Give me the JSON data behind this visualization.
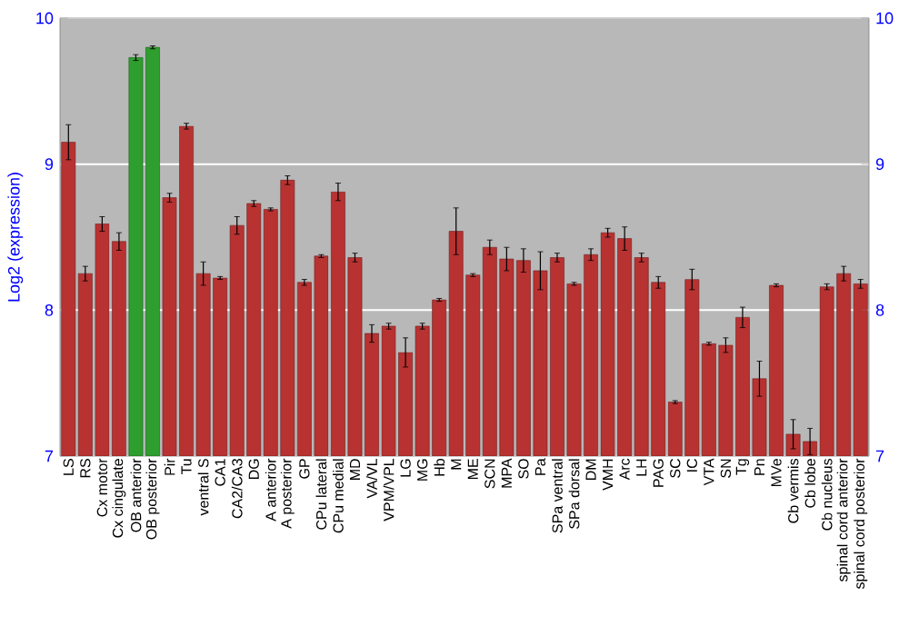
{
  "chart_data": {
    "type": "bar",
    "ylabel": "Log2 (expression)",
    "categories": [
      "LS",
      "RS",
      "Cx motor",
      "Cx cingulate",
      "OB anterior",
      "OB posterior",
      "Pir",
      "Tu",
      "ventral S",
      "CA1",
      "CA2/CA3",
      "DG",
      "A anterior",
      "A posterior",
      "GP",
      "CPu lateral",
      "CPu medial",
      "MD",
      "VA/VL",
      "VPM/VPL",
      "LG",
      "MG",
      "Hb",
      "M",
      "ME",
      "SCN",
      "MPA",
      "SO",
      "Pa",
      "SPa ventral",
      "SPa dorsal",
      "DM",
      "VMH",
      "Arc",
      "LH",
      "PAG",
      "SC",
      "IC",
      "VTA",
      "SN",
      "Tg",
      "Pn",
      "MVe",
      "Cb vermis",
      "Cb lobe",
      "Cb nucleus",
      "spinal cord anterior",
      "spinal cord posterior"
    ],
    "values": [
      9.15,
      8.25,
      8.59,
      8.47,
      9.73,
      9.8,
      8.77,
      9.26,
      8.25,
      8.22,
      8.58,
      8.73,
      8.69,
      8.89,
      8.19,
      8.37,
      8.81,
      8.36,
      7.84,
      7.89,
      7.71,
      7.89,
      8.07,
      8.54,
      8.24,
      8.43,
      8.35,
      8.34,
      8.27,
      8.36,
      8.18,
      8.38,
      8.53,
      8.49,
      8.36,
      8.19,
      7.37,
      8.21,
      7.77,
      7.76,
      7.95,
      7.53,
      8.17,
      7.15,
      7.1,
      8.16,
      8.25,
      8.18
    ],
    "errors": [
      0.12,
      0.05,
      0.05,
      0.06,
      0.02,
      0.01,
      0.03,
      0.02,
      0.08,
      0.01,
      0.06,
      0.02,
      0.01,
      0.03,
      0.02,
      0.01,
      0.06,
      0.03,
      0.06,
      0.02,
      0.1,
      0.02,
      0.01,
      0.16,
      0.01,
      0.05,
      0.08,
      0.08,
      0.13,
      0.03,
      0.01,
      0.04,
      0.03,
      0.08,
      0.03,
      0.04,
      0.01,
      0.07,
      0.01,
      0.05,
      0.07,
      0.12,
      0.01,
      0.1,
      0.09,
      0.02,
      0.05,
      0.03
    ],
    "colors": [
      "#b83232",
      "#b83232",
      "#b83232",
      "#b83232",
      "#2e9e2e",
      "#2e9e2e",
      "#b83232",
      "#b83232",
      "#b83232",
      "#b83232",
      "#b83232",
      "#b83232",
      "#b83232",
      "#b83232",
      "#b83232",
      "#b83232",
      "#b83232",
      "#b83232",
      "#b83232",
      "#b83232",
      "#b83232",
      "#b83232",
      "#b83232",
      "#b83232",
      "#b83232",
      "#b83232",
      "#b83232",
      "#b83232",
      "#b83232",
      "#b83232",
      "#b83232",
      "#b83232",
      "#b83232",
      "#b83232",
      "#b83232",
      "#b83232",
      "#b83232",
      "#b83232",
      "#b83232",
      "#b83232",
      "#b83232",
      "#b83232",
      "#b83232",
      "#b83232",
      "#b83232",
      "#b83232",
      "#b83232",
      "#b83232"
    ],
    "ylim": [
      7,
      10
    ],
    "yticks": [
      7,
      8,
      9,
      10
    ],
    "y2lim": [
      7,
      10
    ],
    "y2ticks": [
      7,
      8,
      9,
      10
    ],
    "grid": "y"
  }
}
